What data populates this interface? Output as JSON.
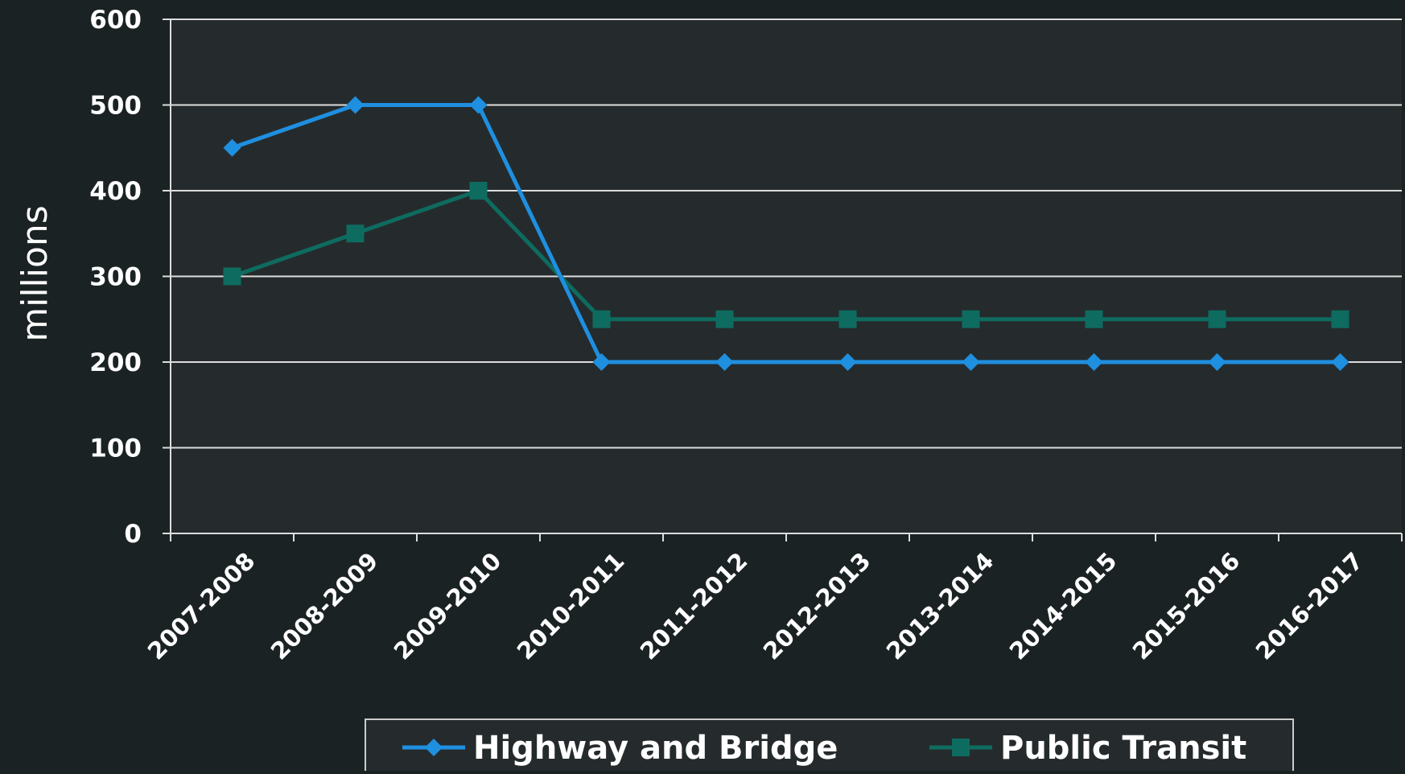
{
  "chart_data": {
    "type": "line",
    "ylabel": "millions",
    "categories": [
      "2007-2008",
      "2008-2009",
      "2009-2010",
      "2010-2011",
      "2011-2012",
      "2012-2013",
      "2013-2014",
      "2014-2015",
      "2015-2016",
      "2016-2017"
    ],
    "series": [
      {
        "name": "Highway and Bridge",
        "color": "#1f8fe0",
        "marker": "diamond",
        "values": [
          450,
          500,
          500,
          200,
          200,
          200,
          200,
          200,
          200,
          200
        ]
      },
      {
        "name": "Public Transit",
        "color": "#0e6b60",
        "marker": "square",
        "values": [
          300,
          350,
          400,
          250,
          250,
          250,
          250,
          250,
          250,
          250
        ]
      }
    ],
    "ylim": [
      0,
      600
    ],
    "yticks": [
      0,
      100,
      200,
      300,
      400,
      500,
      600
    ],
    "grid": true,
    "legend": "bottom"
  }
}
